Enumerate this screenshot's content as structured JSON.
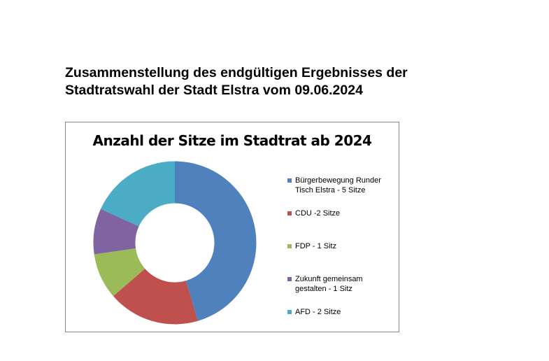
{
  "header": {
    "title": "Zusammenstellung des endgültigen Ergebnisses der Stadtratswahl der Stadt Elstra vom 09.06.2024"
  },
  "chart_data": {
    "type": "donut",
    "title": "Anzahl der Sitze im Stadtrat ab 2024",
    "categories": [
      "Bürgerbewegung Runder Tisch Elstra - 5 Sitze",
      "CDU -2 Sitze",
      "FDP - 1 Sitz",
      "Zukunft gemeinsam gestalten - 1 Sitz",
      "AFD - 2 Sitze"
    ],
    "values": [
      5,
      2,
      1,
      1,
      2
    ],
    "colors": [
      "#4f81bd",
      "#c0504d",
      "#9bbb59",
      "#8064a2",
      "#4bacc6"
    ],
    "legend": "right"
  }
}
